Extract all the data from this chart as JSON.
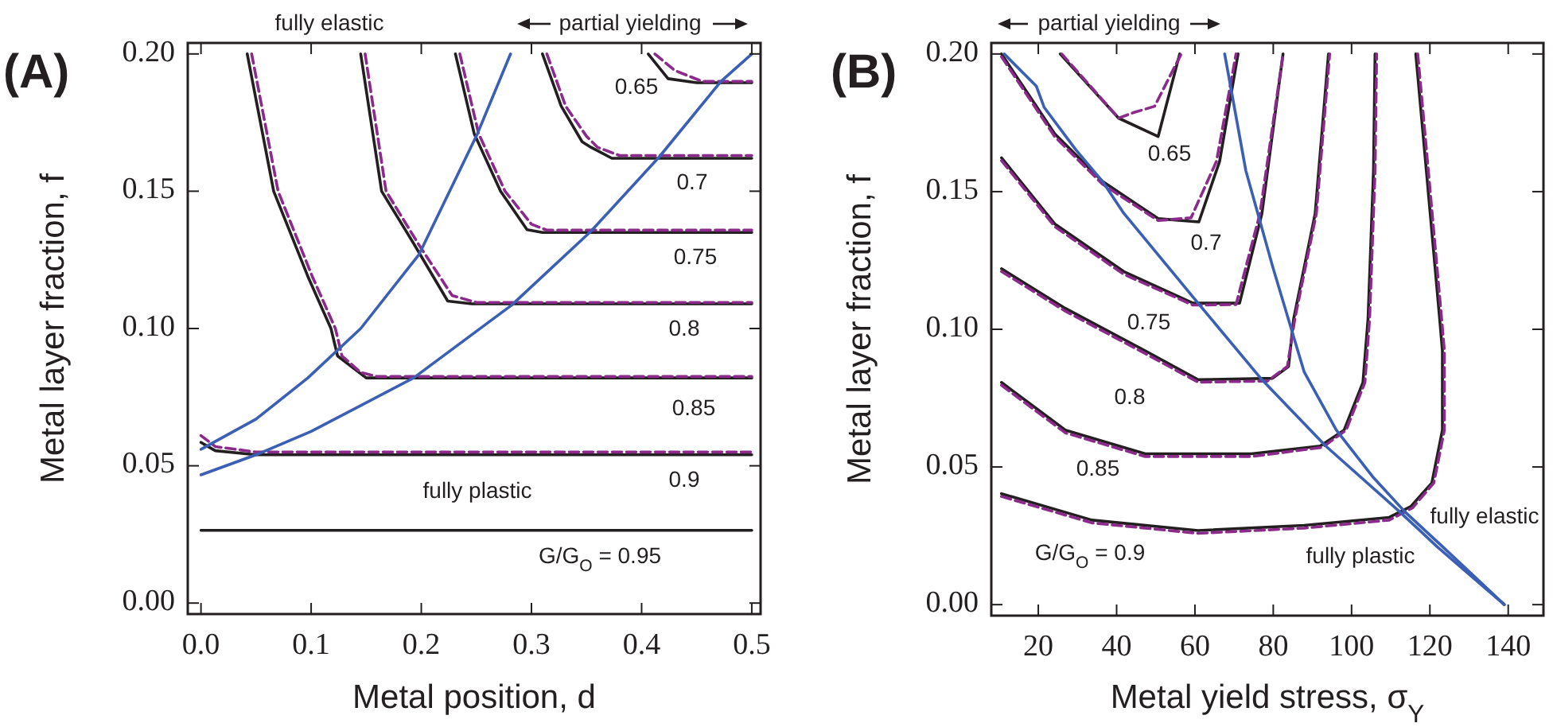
{
  "chart_data": [
    {
      "type": "line",
      "title": "(A)",
      "xlabel": "Metal position, d",
      "ylabel": "Metal layer fraction, f",
      "xlim": [
        -0.012,
        0.508
      ],
      "ylim": [
        -0.004,
        0.204
      ],
      "xticks": [
        {
          "value": 0,
          "label": "0.0"
        },
        {
          "value": 0.1,
          "label": "0.1"
        },
        {
          "value": 0.2,
          "label": "0.2"
        },
        {
          "value": 0.3,
          "label": "0.3"
        },
        {
          "value": 0.4,
          "label": "0.4"
        },
        {
          "value": 0.5,
          "label": "0.5"
        }
      ],
      "yticks": [
        {
          "value": 0,
          "label": "0.00"
        },
        {
          "value": 0.05,
          "label": "0.05"
        },
        {
          "value": 0.1,
          "label": "0.10"
        },
        {
          "value": 0.15,
          "label": "0.15"
        },
        {
          "value": 0.2,
          "label": "0.20"
        }
      ],
      "series": [
        {
          "color": "#231f20",
          "line_style": "solid",
          "x": [
            0.042,
            0.066,
            0.097,
            0.118,
            0.124,
            0.15,
            0.5
          ],
          "values": [
            0.2,
            0.15,
            0.119,
            0.1,
            0.09,
            0.082,
            0.082
          ]
        },
        {
          "color": "#8b2a8b",
          "line_style": "dashed",
          "x": [
            0.046,
            0.07,
            0.101,
            0.122,
            0.128,
            0.145,
            0.16,
            0.5
          ],
          "values": [
            0.2,
            0.15,
            0.119,
            0.1,
            0.09,
            0.084,
            0.0825,
            0.0825
          ]
        },
        {
          "color": "#231f20",
          "line_style": "solid",
          "x": [
            0.145,
            0.164,
            0.193,
            0.224,
            0.246,
            0.5
          ],
          "values": [
            0.2,
            0.15,
            0.131,
            0.11,
            0.109,
            0.109
          ]
        },
        {
          "color": "#8b2a8b",
          "line_style": "dashed",
          "x": [
            0.149,
            0.168,
            0.197,
            0.228,
            0.25,
            0.5
          ],
          "values": [
            0.2,
            0.15,
            0.131,
            0.112,
            0.1095,
            0.1095
          ]
        },
        {
          "color": "#231f20",
          "line_style": "solid",
          "x": [
            0.231,
            0.248,
            0.272,
            0.296,
            0.31,
            0.5
          ],
          "values": [
            0.2,
            0.171,
            0.15,
            0.136,
            0.135,
            0.135
          ]
        },
        {
          "color": "#8b2a8b",
          "line_style": "dashed",
          "x": [
            0.235,
            0.252,
            0.276,
            0.3,
            0.314,
            0.5
          ],
          "values": [
            0.2,
            0.171,
            0.15,
            0.138,
            0.1358,
            0.1358
          ]
        },
        {
          "color": "#231f20",
          "line_style": "solid",
          "x": [
            0.31,
            0.327,
            0.346,
            0.354,
            0.373,
            0.5
          ],
          "values": [
            0.2,
            0.181,
            0.168,
            0.166,
            0.162,
            0.162
          ]
        },
        {
          "color": "#8b2a8b",
          "line_style": "dashed",
          "x": [
            0.314,
            0.331,
            0.35,
            0.36,
            0.38,
            0.5
          ],
          "values": [
            0.2,
            0.181,
            0.17,
            0.166,
            0.163,
            0.163
          ]
        },
        {
          "color": "#231f20",
          "line_style": "solid",
          "x": [
            0.406,
            0.424,
            0.45,
            0.5
          ],
          "values": [
            0.2,
            0.191,
            0.1895,
            0.1895
          ]
        },
        {
          "color": "#8b2a8b",
          "line_style": "dashed",
          "x": [
            0.412,
            0.43,
            0.455,
            0.5
          ],
          "values": [
            0.2,
            0.194,
            0.19,
            0.19
          ]
        },
        {
          "color": "#231f20",
          "line_style": "solid",
          "x": [
            0,
            0.013,
            0.05,
            0.5
          ],
          "values": [
            0.0585,
            0.0555,
            0.054,
            0.054
          ]
        },
        {
          "color": "#8b2a8b",
          "line_style": "dashed",
          "x": [
            0,
            0.013,
            0.05,
            0.5
          ],
          "values": [
            0.061,
            0.057,
            0.055,
            0.055
          ]
        },
        {
          "color": "#231f20",
          "line_style": "solid",
          "x": [
            0,
            0.5
          ],
          "values": [
            0.0265,
            0.0265
          ]
        },
        {
          "color": "#3a5fb5",
          "line_style": "solid",
          "x": [
            0,
            0.05,
            0.097,
            0.145,
            0.198,
            0.251,
            0.281
          ],
          "values": [
            0.056,
            0.067,
            0.082,
            0.1,
            0.127,
            0.171,
            0.2
          ]
        },
        {
          "color": "#3a5fb5",
          "line_style": "solid",
          "x": [
            0,
            0.05,
            0.1,
            0.193,
            0.282,
            0.354,
            0.416,
            0.472,
            0.5
          ],
          "values": [
            0.0467,
            0.054,
            0.0625,
            0.082,
            0.1085,
            0.1354,
            0.1625,
            0.19,
            0.2
          ]
        }
      ],
      "annotations": [
        "fully elastic",
        "partial yielding",
        "0.65",
        "0.7",
        "0.75",
        "0.8",
        "0.85",
        "0.9",
        "fully plastic",
        "G/G$_{O}$ = 0.95"
      ]
    },
    {
      "type": "line",
      "title": "(B)",
      "xlabel": "Metal yield stress, σ$_{Y}$",
      "ylabel": "Metal layer fraction, f",
      "xlim": [
        8,
        149
      ],
      "ylim": [
        -0.004,
        0.204
      ],
      "xticks": [
        20,
        40,
        60,
        80,
        100,
        120,
        140
      ],
      "yticks": [
        {
          "value": 0,
          "label": "0.00"
        },
        {
          "value": 0.05,
          "label": "0.05"
        },
        {
          "value": 0.1,
          "label": "0.10"
        },
        {
          "value": 0.15,
          "label": "0.15"
        },
        {
          "value": 0.2,
          "label": "0.20"
        }
      ],
      "series": [
        {
          "color": "#231f20",
          "line_style": "solid",
          "x": [
            25.6,
            40.5,
            50.6,
            56.1
          ],
          "values": [
            0.2,
            0.1767,
            0.17,
            0.2
          ]
        },
        {
          "color": "#8b2a8b",
          "line_style": "dashed",
          "x": [
            26,
            40.5,
            44.3,
            49.7,
            56.5
          ],
          "values": [
            0.2,
            0.1767,
            0.1787,
            0.181,
            0.2
          ]
        },
        {
          "color": "#231f20",
          "line_style": "solid",
          "x": [
            10.6,
            24.2,
            36.4,
            50.6,
            61,
            66.3,
            71
          ],
          "values": [
            0.2,
            0.171,
            0.1537,
            0.1402,
            0.139,
            0.161,
            0.2
          ]
        },
        {
          "color": "#8b2a8b",
          "line_style": "dashed",
          "x": [
            10.6,
            24.2,
            36.4,
            50.6,
            59,
            65.5,
            70.5
          ],
          "values": [
            0.199,
            0.17,
            0.1527,
            0.1395,
            0.1405,
            0.161,
            0.2
          ]
        },
        {
          "color": "#231f20",
          "line_style": "solid",
          "x": [
            10.6,
            24.2,
            41.8,
            59.5,
            71.4,
            77.1,
            82.5
          ],
          "values": [
            0.1623,
            0.1383,
            0.121,
            0.1095,
            0.1095,
            0.142,
            0.2
          ]
        },
        {
          "color": "#8b2a8b",
          "line_style": "dashed",
          "x": [
            10.6,
            24.2,
            41.8,
            59.5,
            70.5,
            76.6,
            82.5
          ],
          "values": [
            0.1613,
            0.1373,
            0.12,
            0.1088,
            0.109,
            0.142,
            0.2
          ]
        },
        {
          "color": "#231f20",
          "line_style": "solid",
          "x": [
            10.6,
            26.9,
            47.3,
            60.8,
            79.8,
            83.9,
            85.2,
            90.7,
            94.1
          ],
          "values": [
            0.122,
            0.1076,
            0.0922,
            0.0817,
            0.0822,
            0.0865,
            0.1037,
            0.142,
            0.2
          ]
        },
        {
          "color": "#8b2a8b",
          "line_style": "dashed",
          "x": [
            10.6,
            26.9,
            47.3,
            60.8,
            78.5,
            83.6,
            85.5,
            91,
            94.4
          ],
          "values": [
            0.121,
            0.1066,
            0.0912,
            0.0808,
            0.0812,
            0.0865,
            0.1037,
            0.142,
            0.2
          ]
        },
        {
          "color": "#231f20",
          "line_style": "solid",
          "x": [
            10.6,
            26.9,
            47.3,
            74.4,
            92,
            98.1,
            102.9,
            104.2,
            105.6,
            106
          ],
          "values": [
            0.0807,
            0.0634,
            0.0548,
            0.0548,
            0.0576,
            0.0634,
            0.0807,
            0.1037,
            0.1576,
            0.2
          ]
        },
        {
          "color": "#8b2a8b",
          "line_style": "dashed",
          "x": [
            10.6,
            26.9,
            47.3,
            74.4,
            92.5,
            98.6,
            103.4,
            104.6,
            106,
            106.4
          ],
          "values": [
            0.0797,
            0.0624,
            0.0538,
            0.0538,
            0.0571,
            0.0634,
            0.0807,
            0.1037,
            0.1576,
            0.2
          ]
        },
        {
          "color": "#231f20",
          "line_style": "solid",
          "x": [
            10.6,
            33.7,
            60.8,
            87.9,
            109.6,
            115.1,
            120.5,
            123.2,
            123.2,
            122.5,
            119.1,
            116.4
          ],
          "values": [
            0.0403,
            0.0307,
            0.0269,
            0.0288,
            0.0317,
            0.0356,
            0.0442,
            0.0634,
            0.0922,
            0.1037,
            0.1576,
            0.2
          ]
        },
        {
          "color": "#8b2a8b",
          "line_style": "dashed",
          "x": [
            10.6,
            33.7,
            60.8,
            87.9,
            109.6,
            115.6,
            121,
            123.7,
            123.7,
            123,
            119.6,
            116.9
          ],
          "values": [
            0.0393,
            0.0297,
            0.0259,
            0.0278,
            0.0307,
            0.0352,
            0.0442,
            0.0634,
            0.0922,
            0.1037,
            0.1576,
            0.2
          ]
        },
        {
          "color": "#3a5fb5",
          "line_style": "solid",
          "x": [
            11.3,
            19.5,
            21.5,
            29.6,
            36.4,
            41.8,
            60.8,
            77.1,
            93.4,
            112.4,
            121.8,
            139
          ],
          "values": [
            0.2,
            0.1883,
            0.1806,
            0.1652,
            0.1537,
            0.1422,
            0.1095,
            0.0817,
            0.0576,
            0.0336,
            0.0211,
            0
          ]
        },
        {
          "color": "#3a5fb5",
          "line_style": "solid",
          "x": [
            67.6,
            73,
            79.8,
            87.9,
            96.1,
            105.6,
            113.7,
            123.2,
            139
          ],
          "values": [
            0.2,
            0.1576,
            0.123,
            0.0845,
            0.0634,
            0.0461,
            0.0336,
            0.0211,
            0
          ]
        }
      ],
      "annotations": [
        "partial yielding",
        "0.65",
        "0.7",
        "0.75",
        "0.8",
        "0.85",
        "G/G$_{O}$ = 0.9",
        "fully elastic",
        "fully plastic"
      ]
    }
  ]
}
